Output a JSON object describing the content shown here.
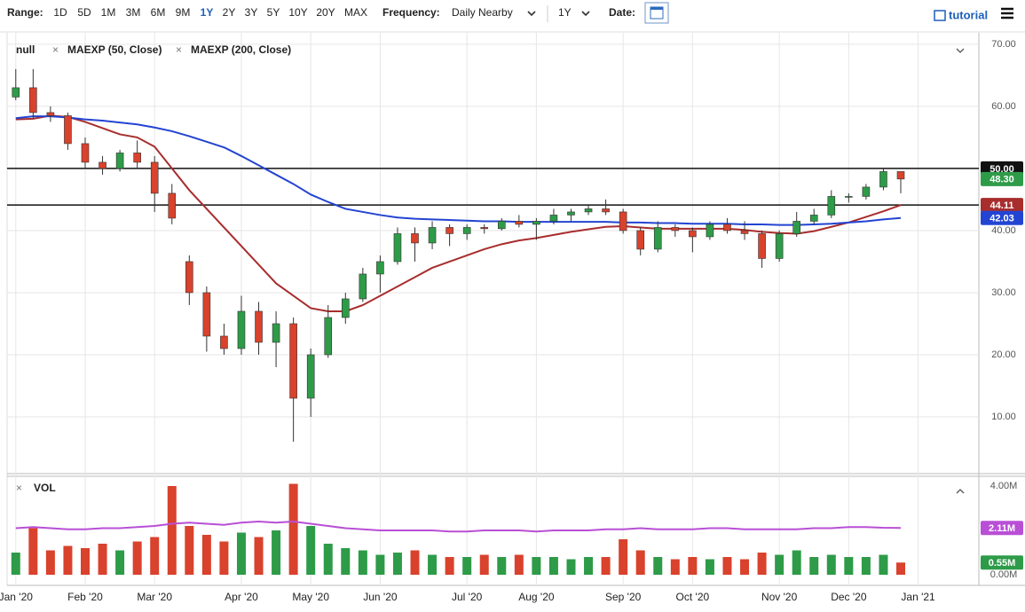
{
  "toolbar": {
    "range_label": "Range:",
    "ranges": [
      "1D",
      "5D",
      "1M",
      "3M",
      "6M",
      "9M",
      "1Y",
      "2Y",
      "3Y",
      "5Y",
      "10Y",
      "20Y",
      "MAX"
    ],
    "active_range": 6,
    "frequency_label": "Frequency:",
    "frequency": "Daily Nearby",
    "period": "1Y",
    "date_label": "Date:",
    "tutorial": "tutorial"
  },
  "chart_data": [
    {
      "type": "candlestick",
      "name": "null",
      "up_color": "#2e9b48",
      "down_color": "#d9422c",
      "categories": [
        "Jan '20",
        null,
        null,
        null,
        "Feb '20",
        null,
        null,
        null,
        "Mar '20",
        null,
        null,
        null,
        null,
        "Apr '20",
        null,
        null,
        null,
        "May '20",
        null,
        null,
        null,
        "Jun '20",
        null,
        null,
        null,
        null,
        "Jul '20",
        null,
        null,
        null,
        "Aug '20",
        null,
        null,
        null,
        null,
        "Sep '20",
        null,
        null,
        null,
        "Oct '20",
        null,
        null,
        null,
        null,
        "Nov '20",
        null,
        null,
        null,
        "Dec '20",
        null,
        null,
        null,
        "Jan '21",
        null,
        null,
        null
      ],
      "open": [
        61.5,
        63,
        59,
        58.5,
        54,
        51,
        50,
        52.5,
        51,
        46,
        35,
        30,
        23,
        21,
        27,
        22,
        25,
        13,
        20,
        26,
        29,
        33,
        35,
        39.5,
        38,
        40.5,
        39.5,
        40.5,
        40.3,
        41.5,
        41,
        41.5,
        42.5,
        43,
        43.5,
        43,
        40,
        37,
        40.5,
        40,
        39,
        41,
        40,
        39.5,
        35.5,
        39.5,
        41.5,
        42.5,
        45.5,
        45.5,
        47,
        49.5,
        null,
        null,
        null,
        null
      ],
      "high": [
        66,
        66,
        60,
        59,
        55,
        52,
        53,
        54.5,
        52,
        47.5,
        36,
        31,
        25,
        29.5,
        28.5,
        27,
        26,
        21,
        28,
        30,
        34,
        36,
        40.5,
        40.5,
        41.5,
        41,
        41,
        41,
        42,
        42.5,
        42,
        43.5,
        43.5,
        44,
        45,
        43.5,
        40.5,
        41.5,
        41,
        40.5,
        41.5,
        42,
        41.5,
        40,
        40,
        43,
        43.5,
        46.5,
        46,
        47.5,
        50,
        49.5,
        null,
        null,
        null,
        null
      ],
      "low": [
        61,
        58,
        57.5,
        53,
        50,
        49,
        49.5,
        50,
        43,
        41,
        28,
        20.5,
        20,
        20,
        20,
        18,
        6,
        10,
        19.5,
        25,
        28.5,
        30,
        34.5,
        35,
        37,
        37.5,
        38.5,
        39.5,
        40,
        40.5,
        38.5,
        41,
        41.5,
        42.5,
        42.5,
        39.5,
        36,
        36.5,
        39,
        36.5,
        38.5,
        39.5,
        38.5,
        34,
        35,
        39,
        41,
        42,
        44.5,
        45,
        46.5,
        46,
        null,
        null,
        null,
        null
      ],
      "close": [
        63,
        59,
        58.5,
        54,
        51,
        50,
        52.5,
        51,
        46,
        42,
        30,
        23,
        21,
        27,
        22,
        25,
        13,
        20,
        26,
        29,
        33,
        35,
        39.5,
        38,
        40.5,
        39.5,
        40.5,
        40.3,
        41.5,
        41,
        41.5,
        42.5,
        43,
        43.5,
        43,
        40,
        37,
        40.5,
        40,
        39,
        41,
        40,
        39.5,
        35.5,
        39.5,
        41.5,
        42.5,
        45.5,
        45.5,
        47,
        49.5,
        48.3,
        null,
        null,
        null,
        null
      ],
      "series": [
        {
          "name": "MAEXP (50, Close)",
          "color": "#a82d2d",
          "values": [
            57.9,
            58,
            58.5,
            58.3,
            57.5,
            56.5,
            55.5,
            55,
            53.5,
            50,
            46.5,
            43.5,
            40.5,
            37.5,
            34.5,
            31.5,
            29.5,
            27.5,
            27,
            27,
            28,
            29.5,
            31,
            32.5,
            34,
            35,
            36,
            37,
            37.8,
            38.4,
            38.8,
            39.3,
            39.8,
            40.2,
            40.6,
            40.7,
            40.5,
            40.3,
            40.3,
            40.3,
            40.3,
            40.3,
            40.1,
            39.8,
            39.6,
            39.5,
            39.9,
            40.6,
            41.3,
            42.2,
            43.1,
            44.11,
            null,
            null,
            null,
            null
          ]
        },
        {
          "name": "MAEXP (200, Close)",
          "color": "#2344d2",
          "values": [
            58.1,
            58.4,
            58.4,
            58.2,
            57.9,
            57.7,
            57.4,
            57.1,
            56.6,
            56,
            55.2,
            54.3,
            53.4,
            52,
            50.5,
            49,
            47.5,
            45.8,
            44.6,
            43.5,
            43,
            42.5,
            42.1,
            41.9,
            41.8,
            41.7,
            41.6,
            41.5,
            41.5,
            41.4,
            41.4,
            41.4,
            41.4,
            41.4,
            41.4,
            41.3,
            41.3,
            41.2,
            41.2,
            41.1,
            41.1,
            41.1,
            41,
            41,
            40.9,
            40.9,
            41,
            41.1,
            41.3,
            41.5,
            41.8,
            42.03,
            null,
            null,
            null,
            null
          ]
        }
      ],
      "ylim": [
        1.0,
        71.7
      ],
      "yticks": [
        {
          "value": 10,
          "label": "10.00"
        },
        {
          "value": 20,
          "label": "20.00"
        },
        {
          "value": 30,
          "label": "30.00"
        },
        {
          "value": 40,
          "label": "40.00"
        },
        {
          "value": 50,
          "label": "50.00"
        },
        {
          "value": 60,
          "label": "60.00"
        },
        {
          "value": 70,
          "label": "70.00"
        }
      ],
      "grid": true,
      "hlines": [
        50,
        44.11
      ],
      "tags": [
        {
          "value": 50,
          "label": "50.00",
          "color": "#111111"
        },
        {
          "value": 48.3,
          "label": "48.30",
          "color": "#2e9b48"
        },
        {
          "value": 44.11,
          "label": "44.11",
          "color": "#a82d2d"
        },
        {
          "value": 42.03,
          "label": "42.03",
          "color": "#2344d2"
        }
      ]
    },
    {
      "type": "bar",
      "name": "VOL",
      "values": [
        1.0,
        2.1,
        1.1,
        1.3,
        1.2,
        1.4,
        1.1,
        1.5,
        1.7,
        4.0,
        2.2,
        1.8,
        1.5,
        1.9,
        1.7,
        2.0,
        4.1,
        2.2,
        1.4,
        1.2,
        1.1,
        0.9,
        1.0,
        1.1,
        0.9,
        0.8,
        0.8,
        0.9,
        0.8,
        0.9,
        0.8,
        0.8,
        0.7,
        0.8,
        0.8,
        1.6,
        1.1,
        0.8,
        0.7,
        0.8,
        0.7,
        0.8,
        0.7,
        1.0,
        0.9,
        1.1,
        0.8,
        0.9,
        0.8,
        0.8,
        0.9,
        0.55,
        null,
        null,
        null,
        null
      ],
      "series": [
        {
          "color": "#b84fd6",
          "values": [
            2.1,
            2.15,
            2.1,
            2.05,
            2.05,
            2.1,
            2.1,
            2.15,
            2.2,
            2.3,
            2.35,
            2.3,
            2.25,
            2.35,
            2.4,
            2.35,
            2.4,
            2.3,
            2.2,
            2.1,
            2.05,
            2.0,
            2.0,
            2.0,
            2.0,
            1.95,
            1.95,
            2.0,
            2.0,
            2.0,
            1.95,
            2.0,
            2.0,
            2.0,
            2.05,
            2.05,
            2.1,
            2.05,
            2.05,
            2.05,
            2.1,
            2.1,
            2.05,
            2.05,
            2.05,
            2.05,
            2.1,
            2.1,
            2.15,
            2.15,
            2.12,
            2.11,
            null,
            null,
            null,
            null
          ]
        }
      ],
      "ylim": [
        -0.28,
        4.32
      ],
      "yticks": [
        {
          "value": 0,
          "label": "0.00M"
        },
        {
          "value": 4,
          "label": "4.00M"
        }
      ],
      "tags": [
        {
          "value": 2.11,
          "label": "2.11M",
          "color": "#b84fd6"
        },
        {
          "value": 0.55,
          "label": "0.55M",
          "color": "#2e9b48"
        }
      ]
    }
  ]
}
